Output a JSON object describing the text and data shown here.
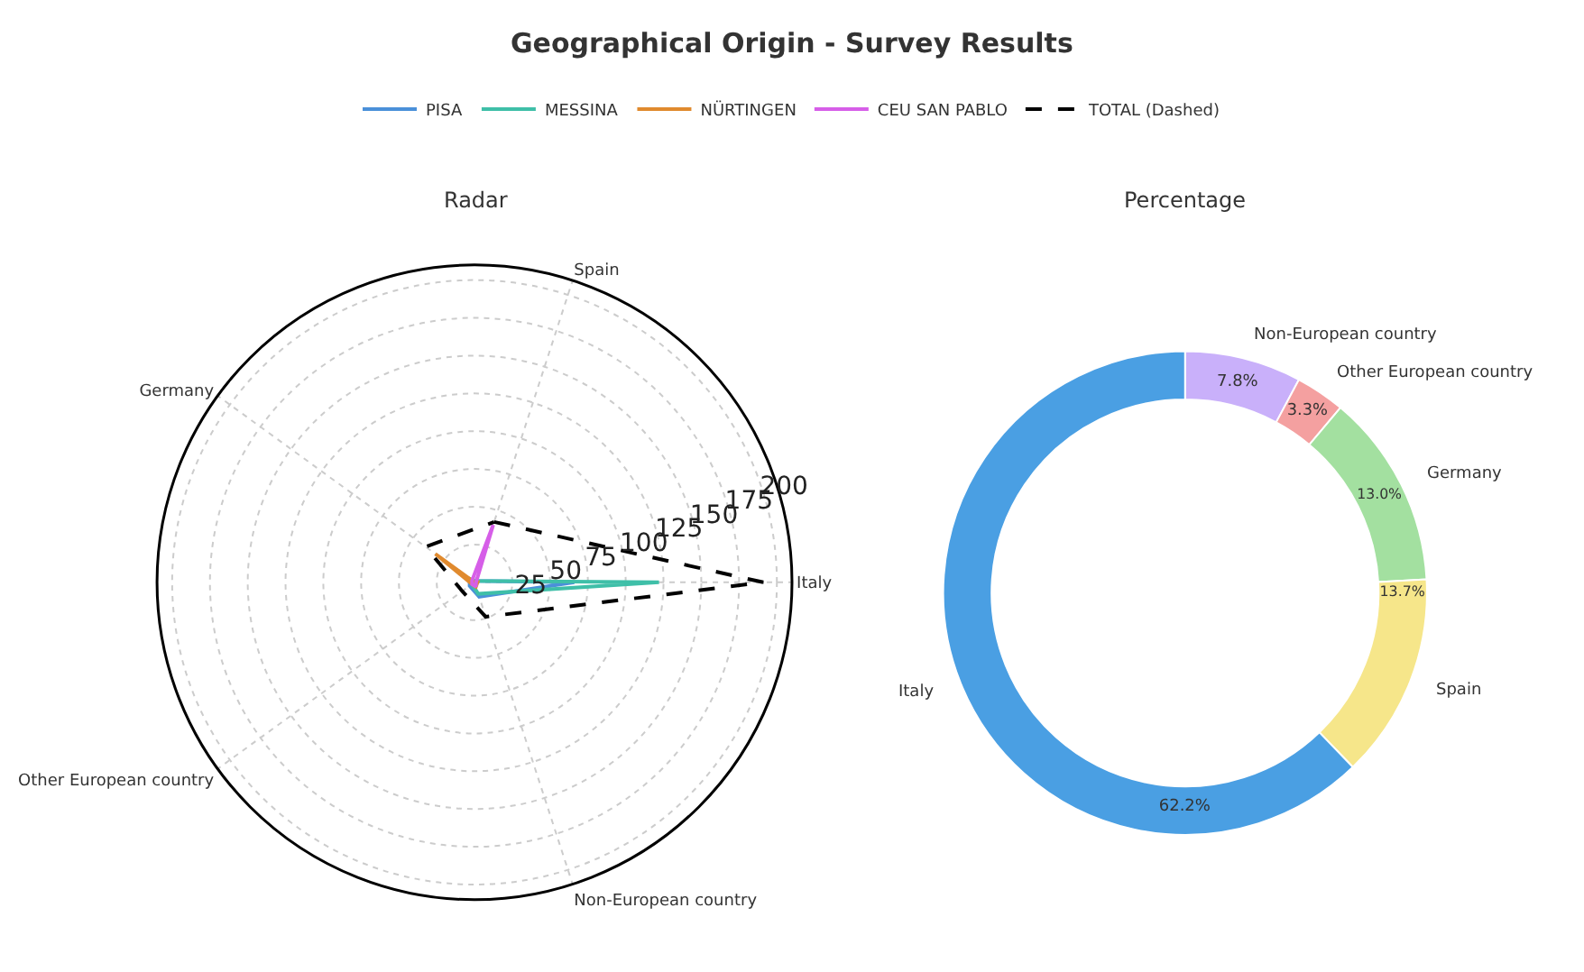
{
  "chart_data": [
    {
      "type": "radar",
      "title": "Geographical Origin - Survey Results",
      "subtitle": "Radar",
      "categories": [
        "Spain",
        "Italy",
        "Non-European country",
        "Other European country",
        "Germany"
      ],
      "series": [
        {
          "name": "PISA",
          "color": "#4a90d9",
          "values": [
            1,
            66,
            10,
            4,
            4
          ]
        },
        {
          "name": "MESSINA",
          "color": "#3fbfa8",
          "values": [
            1,
            122,
            8,
            2,
            2
          ]
        },
        {
          "name": "NÜRTINGEN",
          "color": "#e08a2e",
          "values": [
            0,
            2,
            3,
            2,
            32
          ]
        },
        {
          "name": "CEU SAN PABLO",
          "color": "#d65ee8",
          "values": [
            40,
            1,
            3,
            2,
            2
          ]
        },
        {
          "name": "TOTAL (Dashed)",
          "color": "#000000",
          "values": [
            42,
            191,
            24,
            10,
            40
          ],
          "line_style": "dashed"
        }
      ],
      "ylim": [
        0,
        210
      ],
      "yticks": [
        25,
        50,
        75,
        100,
        125,
        150,
        175,
        200
      ],
      "grid": true,
      "legend": "top",
      "line_style": "solid"
    },
    {
      "type": "donut",
      "title": "Percentage",
      "categories": [
        "Non-European country",
        "Other European country",
        "Germany",
        "Spain",
        "Italy"
      ],
      "values": [
        7.8,
        3.3,
        13.0,
        13.7,
        62.2
      ],
      "value_labels": [
        "7.8%",
        "3.3%",
        "13.0%",
        "13.7%",
        "62.2%"
      ],
      "colors": [
        "#c9b0fa",
        "#f4a0a0",
        "#a3e0a0",
        "#f6e68a",
        "#4a9fe3"
      ]
    }
  ]
}
